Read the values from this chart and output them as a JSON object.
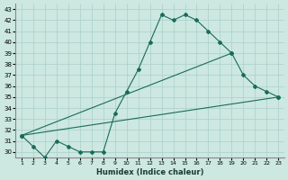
{
  "background_color": "#cce8e0",
  "grid_color": "#aacfc8",
  "line_color": "#1a6b5a",
  "xlabel": "Humidex (Indice chaleur)",
  "ylim": [
    29.5,
    43.5
  ],
  "xlim": [
    0.5,
    23.5
  ],
  "yticks": [
    30,
    31,
    32,
    33,
    34,
    35,
    36,
    37,
    38,
    39,
    40,
    41,
    42,
    43
  ],
  "xticks": [
    1,
    2,
    3,
    4,
    5,
    6,
    7,
    8,
    9,
    10,
    11,
    12,
    13,
    14,
    15,
    16,
    17,
    18,
    19,
    20,
    21,
    22,
    23
  ],
  "series": [
    {
      "x": [
        1,
        2,
        3,
        4,
        5,
        6,
        7,
        8,
        9,
        10,
        11,
        12,
        13,
        14,
        15,
        16,
        17,
        18,
        19
      ],
      "y": [
        31.5,
        30.5,
        29.5,
        31.0,
        30.5,
        30.0,
        30.0,
        30.0,
        33.5,
        35.5,
        37.5,
        40.0,
        42.5,
        42.0,
        42.5,
        42.0,
        41.0,
        40.0,
        39.0
      ]
    },
    {
      "x": [
        1,
        19,
        20,
        21,
        22,
        23
      ],
      "y": [
        31.5,
        39.0,
        37.0,
        36.0,
        35.5,
        35.0
      ]
    },
    {
      "x": [
        1,
        23
      ],
      "y": [
        31.5,
        35.0
      ]
    }
  ]
}
